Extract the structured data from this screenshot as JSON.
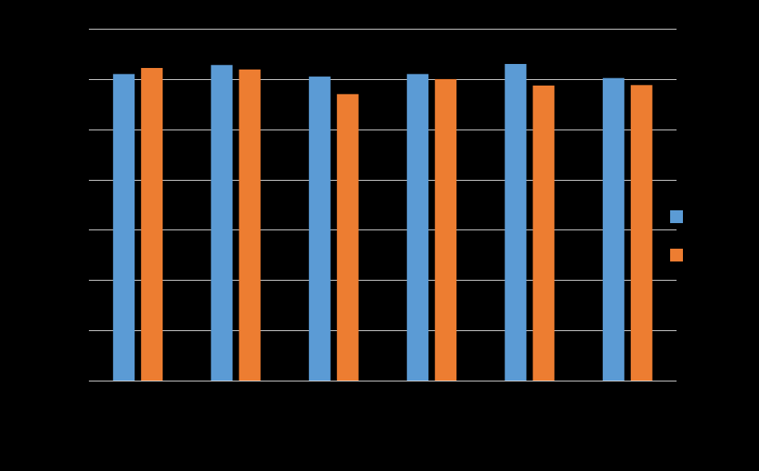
{
  "chart_data": {
    "type": "bar",
    "title": "",
    "xlabel": "",
    "ylabel": "",
    "ylim": [
      0,
      7
    ],
    "y_ticks": [
      0,
      1,
      2,
      3,
      4,
      5,
      6,
      7
    ],
    "grid": "horizontal",
    "legend_position": "right",
    "categories": [
      "",
      "",
      "",
      "",
      "",
      ""
    ],
    "series": [
      {
        "color": "#5b9bd5",
        "values": [
          6.1,
          6.28,
          6.05,
          6.1,
          6.3,
          6.02
        ]
      },
      {
        "color": "#ed7d31",
        "values": [
          6.22,
          6.19,
          5.7,
          6.0,
          5.87,
          5.88
        ]
      }
    ]
  },
  "colors": {
    "background": "#000000",
    "gridline": "#d9d9d9"
  }
}
